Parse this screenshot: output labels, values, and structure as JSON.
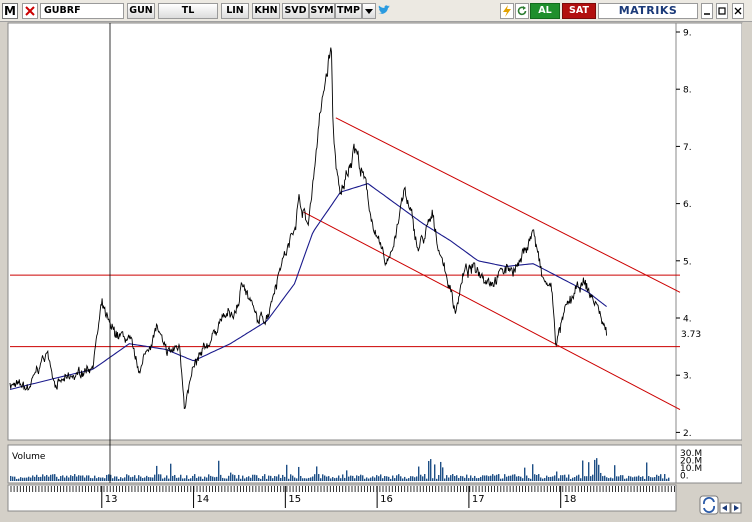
{
  "toolbar": {
    "m_logo": "M",
    "symbol": "GUBRF",
    "buttons": {
      "gun": "GUN",
      "tl": "TL",
      "lin": "LIN",
      "khn": "KHN",
      "svd": "SVD",
      "sym": "SYM",
      "tmp": "TMP"
    },
    "al": "AL",
    "sat": "SAT",
    "brand": "MATRIKS"
  },
  "colors": {
    "al": "#1f8f2c",
    "sat": "#b20f0f",
    "price": "#000000",
    "ma": "#1a1a8c",
    "channel": "#cc0000",
    "volume": "#1e4f86"
  },
  "icons": [
    "close-x-icon",
    "dropdown-arrow-icon",
    "twitter-bird-icon",
    "lightning-icon",
    "refresh-icon",
    "minimize-icon",
    "maximize-icon",
    "close-icon",
    "scroll-left-icon",
    "scroll-right-icon",
    "sync-icon"
  ],
  "chart_data": {
    "type": "line",
    "series": [],
    "y_ticks": [
      "9.",
      "8.",
      "7.",
      "6.",
      "5.",
      "4.",
      "3.",
      "2."
    ],
    "last_price": "3.73",
    "x_year_labels": [
      "13",
      "14",
      "15",
      "16",
      "17",
      "18"
    ],
    "horizontal_levels": [
      4.75,
      3.5
    ],
    "volume_label": "Volume",
    "volume_ticks": [
      "30.M",
      "20.M",
      "10.M",
      "0."
    ],
    "channel": {
      "upper": [
        [
          2015.55,
          7.5
        ],
        [
          2019.3,
          4.45
        ]
      ],
      "lower": [
        [
          2015.2,
          5.85
        ],
        [
          2019.3,
          2.4
        ]
      ]
    },
    "ylim": [
      1.8,
      9.2
    ],
    "xlim": [
      2012.0,
      2019.3
    ],
    "price_anchors": [
      [
        2012.0,
        2.85
      ],
      [
        2012.2,
        2.75
      ],
      [
        2012.4,
        3.4
      ],
      [
        2012.5,
        2.85
      ],
      [
        2012.7,
        2.95
      ],
      [
        2012.9,
        3.2
      ],
      [
        2013.0,
        4.2
      ],
      [
        2013.1,
        3.75
      ],
      [
        2013.3,
        3.6
      ],
      [
        2013.4,
        3.05
      ],
      [
        2013.6,
        3.85
      ],
      [
        2013.7,
        3.35
      ],
      [
        2013.85,
        3.5
      ],
      [
        2013.9,
        2.5
      ],
      [
        2014.0,
        3.1
      ],
      [
        2014.15,
        3.5
      ],
      [
        2014.3,
        4.0
      ],
      [
        2014.45,
        4.05
      ],
      [
        2014.55,
        4.65
      ],
      [
        2014.7,
        3.9
      ],
      [
        2014.8,
        4.05
      ],
      [
        2014.95,
        5.0
      ],
      [
        2015.05,
        5.3
      ],
      [
        2015.15,
        6.1
      ],
      [
        2015.25,
        5.6
      ],
      [
        2015.35,
        7.2
      ],
      [
        2015.5,
        8.75
      ],
      [
        2015.52,
        7.2
      ],
      [
        2015.6,
        6.0
      ],
      [
        2015.75,
        7.1
      ],
      [
        2015.9,
        6.1
      ],
      [
        2016.0,
        5.3
      ],
      [
        2016.1,
        4.9
      ],
      [
        2016.2,
        5.5
      ],
      [
        2016.3,
        6.2
      ],
      [
        2016.45,
        5.2
      ],
      [
        2016.6,
        5.7
      ],
      [
        2016.75,
        4.8
      ],
      [
        2016.85,
        4.15
      ],
      [
        2016.95,
        4.8
      ],
      [
        2017.1,
        4.85
      ],
      [
        2017.25,
        4.7
      ],
      [
        2017.4,
        4.85
      ],
      [
        2017.55,
        4.95
      ],
      [
        2017.7,
        5.55
      ],
      [
        2017.8,
        4.65
      ],
      [
        2017.9,
        4.5
      ],
      [
        2017.95,
        3.55
      ],
      [
        2018.05,
        4.1
      ],
      [
        2018.15,
        4.4
      ],
      [
        2018.25,
        4.6
      ],
      [
        2018.4,
        4.2
      ],
      [
        2018.5,
        3.73
      ]
    ],
    "ma_anchors": [
      [
        2012.0,
        2.75
      ],
      [
        2012.5,
        2.95
      ],
      [
        2012.9,
        3.1
      ],
      [
        2013.3,
        3.55
      ],
      [
        2013.7,
        3.45
      ],
      [
        2014.0,
        3.25
      ],
      [
        2014.4,
        3.55
      ],
      [
        2014.8,
        3.95
      ],
      [
        2015.1,
        4.6
      ],
      [
        2015.3,
        5.5
      ],
      [
        2015.6,
        6.2
      ],
      [
        2015.9,
        6.35
      ],
      [
        2016.2,
        6.0
      ],
      [
        2016.5,
        5.65
      ],
      [
        2016.8,
        5.35
      ],
      [
        2017.1,
        5.0
      ],
      [
        2017.4,
        4.9
      ],
      [
        2017.7,
        4.95
      ],
      [
        2018.0,
        4.7
      ],
      [
        2018.3,
        4.45
      ],
      [
        2018.5,
        4.2
      ]
    ]
  }
}
